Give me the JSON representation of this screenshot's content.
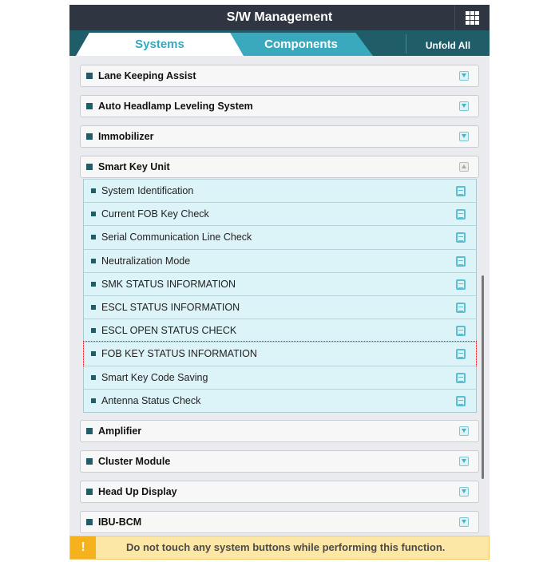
{
  "header": {
    "title": "S/W Management",
    "menu_icon": "grid-icon"
  },
  "tabs": [
    {
      "label": "Systems",
      "active": true
    },
    {
      "label": "Components",
      "active": false
    }
  ],
  "unfold_all": "Unfold All",
  "groups_top": [
    "Lane Keeping Assist",
    "Auto Headlamp Leveling System",
    "Immobilizer",
    "Smart Key Unit"
  ],
  "sub_items": [
    "System Identification",
    "Current FOB Key Check",
    "Serial Communication Line Check",
    "Neutralization Mode",
    "SMK STATUS INFORMATION",
    "ESCL STATUS INFORMATION",
    "ESCL OPEN STATUS CHECK",
    "FOB KEY STATUS INFORMATION",
    "Smart Key Code Saving",
    "Antenna Status Check"
  ],
  "selected_sub": "FOB KEY STATUS INFORMATION",
  "groups_bottom": [
    "Amplifier",
    "Cluster Module",
    "Head Up Display",
    "IBU-BCM"
  ],
  "warning": {
    "icon": "!",
    "text": "Do not touch any system buttons while performing this function."
  },
  "colors": {
    "header": "#2f3541",
    "tabbar": "#1f5d68",
    "accent": "#3aa9bd",
    "warning_bg": "#fde7a6"
  }
}
